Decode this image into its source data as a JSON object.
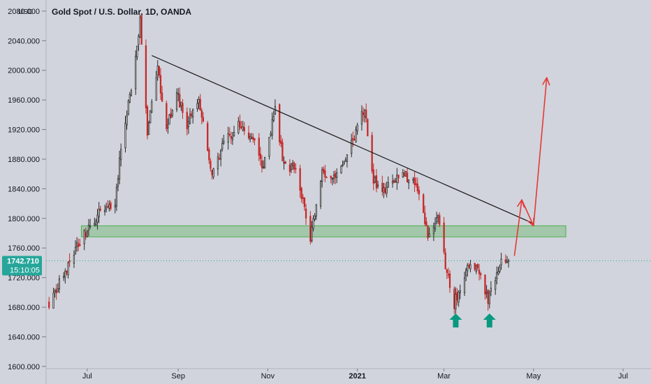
{
  "chart_data": {
    "type": "candlestick",
    "title": "Gold Spot / U.S. Dollar, 1D, OANDA",
    "unit_label": "USD",
    "y_ticks": [
      1600,
      1640,
      1680,
      1720,
      1760,
      1800,
      1840,
      1880,
      1920,
      1960,
      2000,
      2040,
      2080
    ],
    "y_tick_labels": [
      "1600.000",
      "1640.000",
      "1680.000",
      "1720.000",
      "1760.000",
      "1800.000",
      "1840.000",
      "1880.000",
      "1920.000",
      "1960.000",
      "2000.000",
      "2040.000",
      "2080.000"
    ],
    "ylim": [
      1597,
      2095
    ],
    "x_range": [
      "2020-06-03",
      "2021-07-20"
    ],
    "x_ticks": [
      {
        "date": "2020-07-01",
        "label": "Jul",
        "bold": false
      },
      {
        "date": "2020-09-01",
        "label": "Sep",
        "bold": false
      },
      {
        "date": "2020-11-01",
        "label": "Nov",
        "bold": false
      },
      {
        "date": "2021-01-01",
        "label": "2021",
        "bold": true
      },
      {
        "date": "2021-03-01",
        "label": "Mar",
        "bold": false
      },
      {
        "date": "2021-05-01",
        "label": "May",
        "bold": false
      },
      {
        "date": "2021-07-01",
        "label": "Jul",
        "bold": false
      }
    ],
    "price_series": {
      "start": "2020-06-05",
      "end": "2021-04-14",
      "anchors": [
        [
          "2020-06-05",
          1685
        ],
        [
          "2020-06-15",
          1725
        ],
        [
          "2020-06-26",
          1770
        ],
        [
          "2020-07-08",
          1805
        ],
        [
          "2020-07-20",
          1815
        ],
        [
          "2020-07-24",
          1900
        ],
        [
          "2020-07-31",
          1975
        ],
        [
          "2020-08-06",
          2065
        ],
        [
          "2020-08-11",
          1915
        ],
        [
          "2020-08-18",
          2000
        ],
        [
          "2020-08-24",
          1925
        ],
        [
          "2020-08-31",
          1968
        ],
        [
          "2020-09-07",
          1925
        ],
        [
          "2020-09-15",
          1960
        ],
        [
          "2020-09-24",
          1855
        ],
        [
          "2020-10-02",
          1900
        ],
        [
          "2020-10-12",
          1925
        ],
        [
          "2020-10-22",
          1905
        ],
        [
          "2020-10-29",
          1870
        ],
        [
          "2020-11-06",
          1950
        ],
        [
          "2020-11-12",
          1870
        ],
        [
          "2020-11-20",
          1870
        ],
        [
          "2020-11-30",
          1775
        ],
        [
          "2020-12-08",
          1865
        ],
        [
          "2020-12-16",
          1855
        ],
        [
          "2020-12-23",
          1875
        ],
        [
          "2021-01-06",
          1950
        ],
        [
          "2021-01-12",
          1850
        ],
        [
          "2021-01-19",
          1840
        ],
        [
          "2021-01-26",
          1850
        ],
        [
          "2021-02-01",
          1860
        ],
        [
          "2021-02-10",
          1845
        ],
        [
          "2021-02-18",
          1775
        ],
        [
          "2021-02-25",
          1800
        ],
        [
          "2021-03-03",
          1725
        ],
        [
          "2021-03-08",
          1685
        ],
        [
          "2021-03-16",
          1730
        ],
        [
          "2021-03-24",
          1735
        ],
        [
          "2021-03-31",
          1690
        ],
        [
          "2021-04-08",
          1740
        ],
        [
          "2021-04-14",
          1742
        ]
      ]
    },
    "last_price": {
      "value": 1742.71,
      "label": "1742.710",
      "countdown": "15:10:05"
    },
    "zones": [
      {
        "type": "support-rectangle",
        "from": "2020-06-27",
        "to": "2021-05-23",
        "low": 1775,
        "high": 1790,
        "color": "#4caf50"
      }
    ],
    "trendlines": [
      {
        "type": "resistance",
        "from": [
          "2020-08-14",
          2020
        ],
        "to": [
          "2021-05-01",
          1793
        ],
        "color": "#1a1a1a"
      }
    ],
    "projection": {
      "color": "#e53935",
      "points": [
        [
          "2021-04-18",
          1750
        ],
        [
          "2021-04-23",
          1825
        ],
        [
          "2021-05-01",
          1790
        ],
        [
          "2021-05-10",
          1990
        ]
      ]
    },
    "markers": [
      {
        "type": "up-arrow",
        "date": "2021-03-09",
        "color": "#089981"
      },
      {
        "type": "up-arrow",
        "date": "2021-04-01",
        "color": "#089981"
      }
    ],
    "colors": {
      "background": "#d1d4dc",
      "up": "#2a2a2a",
      "down": "#c62828",
      "price_label": "#26a69a",
      "last_price_line": "#26a69a"
    }
  }
}
